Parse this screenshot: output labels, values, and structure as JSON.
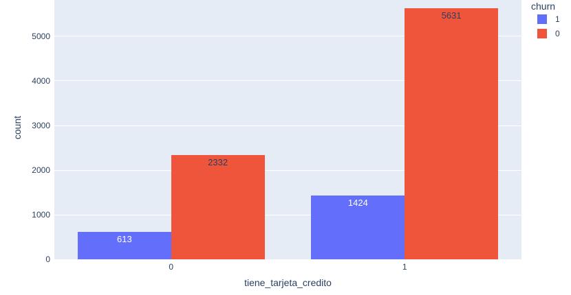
{
  "chart_data": {
    "type": "bar",
    "mode": "grouped",
    "title": "",
    "xlabel": "tiene_tarjeta_credito",
    "ylabel": "count",
    "legend_title": "churn",
    "categories": [
      "0",
      "1"
    ],
    "series": [
      {
        "name": "1",
        "color": "#636EFA",
        "label_color": "#FFFFFF",
        "values": [
          613,
          1424
        ]
      },
      {
        "name": "0",
        "color": "#EF553B",
        "label_color": "#2A3F5F",
        "values": [
          2332,
          5631
        ]
      }
    ],
    "yticks": [
      0,
      1000,
      2000,
      3000,
      4000,
      5000
    ],
    "ylim": [
      0,
      5815
    ],
    "grid": true,
    "bar_labels_visible": true,
    "legend_position": "outside-top-right",
    "colors": {
      "plot_bg": "#E5ECF6",
      "paper_bg": "#FFFFFF",
      "grid": "#FFFFFF",
      "text": "#2A3F5F"
    }
  }
}
